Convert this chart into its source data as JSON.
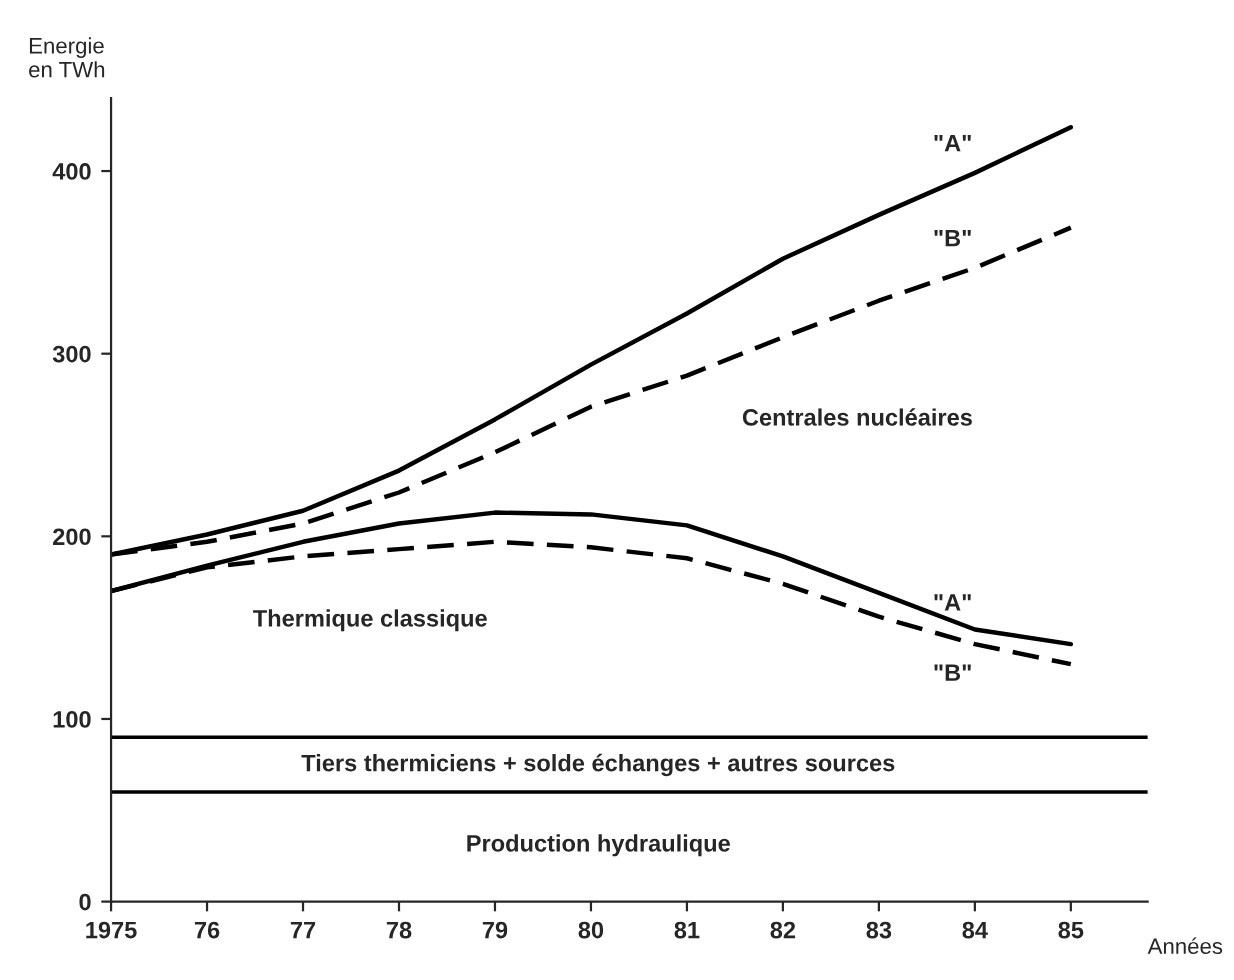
{
  "chart_data": {
    "type": "line",
    "ylabel": "Energie\nen TWh",
    "xlabel": "Années",
    "x": [
      1975,
      1976,
      1977,
      1978,
      1979,
      1980,
      1981,
      1982,
      1983,
      1984,
      1985
    ],
    "series": [
      {
        "name": "\"A\"",
        "color": "#000000",
        "line_style": "solid",
        "values": [
          190,
          201,
          214,
          236,
          264,
          294,
          322,
          352,
          376,
          399,
          424
        ]
      },
      {
        "name": "\"B\"",
        "color": "#000000",
        "line_style": "dashed",
        "values": [
          190,
          197,
          207,
          224,
          246,
          271,
          288,
          309,
          329,
          347,
          369
        ]
      },
      {
        "name": "\"A\"",
        "color": "#000000",
        "line_style": "solid",
        "values": [
          170,
          184,
          197,
          207,
          213,
          212,
          206,
          189,
          169,
          149,
          141
        ]
      },
      {
        "name": "\"B\"",
        "color": "#000000",
        "line_style": "dashed",
        "values": [
          170,
          183,
          189,
          193,
          197,
          194,
          188,
          174,
          156,
          141,
          130
        ]
      }
    ],
    "ref_lines": [
      {
        "axis": "y",
        "value": 90,
        "color": "#000000"
      },
      {
        "axis": "y",
        "value": 60,
        "color": "#000000"
      }
    ],
    "annotations": [
      "Centrales nucléaires",
      "Thermique classique",
      "Tiers thermiciens + solde échanges + autres sources",
      "Production hydraulique"
    ],
    "xlim": [
      1975,
      1985.8
    ],
    "ylim": [
      0,
      440
    ],
    "xticks": [
      1975,
      {
        "value": 1976,
        "label": "76"
      },
      {
        "value": 1977,
        "label": "77"
      },
      {
        "value": 1978,
        "label": "78"
      },
      {
        "value": 1979,
        "label": "79"
      },
      {
        "value": 1980,
        "label": "80"
      },
      {
        "value": 1981,
        "label": "81"
      },
      {
        "value": 1982,
        "label": "82"
      },
      {
        "value": 1983,
        "label": "83"
      },
      {
        "value": 1984,
        "label": "84"
      },
      {
        "value": 1985,
        "label": "85"
      }
    ],
    "yticks": [
      0,
      100,
      200,
      300,
      400
    ],
    "grid": false,
    "legend": false
  }
}
